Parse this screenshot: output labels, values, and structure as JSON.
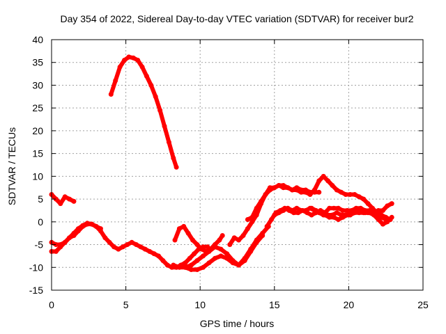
{
  "chart_data": {
    "type": "scatter",
    "title": "Day 354 of 2022, Sidereal Day-to-day VTEC variation (SDTVAR) for receiver bur2",
    "xlabel": "GPS time / hours",
    "ylabel": "SDTVAR / TECUs",
    "xlim": [
      0,
      25
    ],
    "ylim": [
      -15,
      40
    ],
    "xticks": [
      0,
      5,
      10,
      15,
      20,
      25
    ],
    "yticks": [
      -15,
      -10,
      -5,
      0,
      5,
      10,
      15,
      20,
      25,
      30,
      35,
      40
    ],
    "grid": true,
    "color": "#ff0000",
    "series": [
      {
        "name": "s1",
        "x": [
          0.0,
          0.3,
          0.6,
          0.9,
          1.2,
          1.5,
          1.8,
          2.1,
          2.4,
          2.7,
          3.0,
          3.3,
          3.6,
          3.9,
          4.2,
          4.5,
          4.8,
          5.1,
          5.4,
          5.7,
          6.0,
          6.3,
          6.6,
          6.9,
          7.2,
          7.5,
          7.8,
          8.1,
          8.4,
          8.7,
          9.0,
          9.3,
          9.6,
          9.9,
          10.2,
          10.5
        ],
        "y": [
          -4.5,
          -5,
          -5,
          -4.5,
          -3.5,
          -3,
          -2,
          -1,
          -0.5,
          -0.5,
          -1,
          -2,
          -3.5,
          -4.5,
          -5.5,
          -6,
          -5.5,
          -5,
          -4.5,
          -5,
          -5.5,
          -6,
          -6.5,
          -7,
          -7.5,
          -8.5,
          -9.5,
          -10,
          -10,
          -9.5,
          -9,
          -8,
          -7,
          -6,
          -5.5,
          -5.5
        ]
      },
      {
        "name": "s2",
        "x": [
          0.0,
          0.3,
          0.6,
          0.9,
          1.2,
          1.5,
          1.8,
          2.1,
          2.4,
          2.7,
          3.0,
          3.3
        ],
        "y": [
          -6.5,
          -6.5,
          -5.5,
          -4.5,
          -3.5,
          -2.5,
          -1.5,
          -0.8,
          -0.3,
          -0.5,
          -1,
          -1.5
        ]
      },
      {
        "name": "s3",
        "x": [
          0.0,
          0.3,
          0.6,
          0.9,
          1.2,
          1.5
        ],
        "y": [
          6,
          5,
          4,
          5.5,
          5,
          4.5
        ]
      },
      {
        "name": "s4",
        "x": [
          4.0,
          4.3,
          4.6,
          4.9,
          5.2,
          5.5,
          5.8,
          6.1,
          6.4,
          6.7,
          7.0,
          7.3,
          7.6,
          7.9,
          8.2,
          8.4
        ],
        "y": [
          28,
          31,
          34,
          35.5,
          36.2,
          36,
          35.5,
          34,
          32,
          30,
          27.5,
          24.5,
          21,
          17.5,
          14,
          12
        ]
      },
      {
        "name": "s5",
        "x": [
          8.3,
          8.6,
          8.9,
          9.2,
          9.5,
          9.8,
          10.1,
          10.4,
          10.7,
          11.0,
          11.3,
          11.5
        ],
        "y": [
          -4,
          -1.5,
          -1,
          -2.5,
          -4,
          -5,
          -6,
          -6.5,
          -6,
          -5,
          -4,
          -3
        ]
      },
      {
        "name": "s6",
        "x": [
          8.2,
          8.6,
          9.0,
          9.4,
          9.8,
          10.2,
          10.6,
          11.0,
          11.4,
          11.8,
          12.2,
          12.6,
          13.0,
          13.4,
          13.8,
          14.2
        ],
        "y": [
          -9.5,
          -10,
          -10,
          -9.5,
          -8.5,
          -7.5,
          -6.5,
          -5.5,
          -6,
          -7,
          -8.5,
          -9.5,
          -8.5,
          -6.5,
          -4.5,
          -3
        ]
      },
      {
        "name": "s7",
        "x": [
          9.0,
          9.4,
          9.8,
          10.2,
          10.6,
          11.0,
          11.4,
          11.8,
          12.2,
          12.6,
          13.0,
          13.4,
          13.8,
          14.2,
          14.6
        ],
        "y": [
          -10,
          -10.5,
          -10.5,
          -10,
          -9,
          -8,
          -7.5,
          -8,
          -9,
          -9.5,
          -8,
          -6,
          -4,
          -2.5,
          -1
        ]
      },
      {
        "name": "s8",
        "x": [
          12.0,
          12.3,
          12.6,
          12.9,
          13.2,
          13.5,
          13.8,
          14.1,
          14.4,
          14.7,
          15.0,
          15.3,
          15.6,
          15.9,
          16.2,
          16.5,
          16.8,
          17.1,
          17.4,
          17.7,
          18.0
        ],
        "y": [
          -5,
          -3.5,
          -4,
          -3,
          -1.5,
          0,
          1.5,
          4,
          6,
          7,
          7.5,
          8,
          8,
          7.5,
          7,
          7.5,
          7,
          7,
          6.5,
          6.5,
          6.5
        ]
      },
      {
        "name": "s9",
        "x": [
          13.2,
          13.5,
          13.8,
          14.1,
          14.4,
          14.7,
          15.0,
          15.3,
          15.6,
          15.9,
          16.2,
          16.5,
          16.8,
          17.1,
          17.4,
          17.7,
          18.0,
          18.3,
          18.6,
          18.9,
          19.2,
          19.5,
          19.8,
          20.1,
          20.4,
          20.7,
          21.0,
          21.3,
          21.6,
          21.9,
          22.2,
          22.5,
          22.8
        ],
        "y": [
          0.5,
          1,
          3,
          4.5,
          6,
          7.5,
          7.5,
          8,
          7.5,
          7.5,
          7,
          7,
          6.5,
          6.5,
          6,
          7,
          9,
          10,
          9,
          8,
          7,
          6.5,
          6,
          6,
          6,
          5.5,
          5,
          4,
          3,
          2,
          1,
          0.5,
          0.5
        ]
      },
      {
        "name": "s10",
        "x": [
          14.5,
          14.8,
          15.1,
          15.4,
          15.7,
          16.0,
          16.3,
          16.6,
          16.9,
          17.2,
          17.5,
          17.8,
          18.1,
          18.4,
          18.7,
          19.0,
          19.3,
          19.6,
          19.9,
          20.2,
          20.5,
          20.8,
          21.1,
          21.4,
          21.7,
          22.0,
          22.3,
          22.6,
          22.9
        ],
        "y": [
          -1,
          0.5,
          2,
          2.5,
          3,
          2.5,
          2,
          2,
          2.5,
          2,
          1.5,
          2,
          2.5,
          2,
          3,
          3,
          3,
          2.5,
          2.5,
          2.5,
          3,
          3,
          2.5,
          2.5,
          2,
          2.5,
          2.5,
          3.5,
          4
        ]
      },
      {
        "name": "s11",
        "x": [
          15.0,
          15.3,
          15.6,
          15.9,
          16.2,
          16.5,
          16.8,
          17.1,
          17.4,
          17.7,
          18.0,
          18.3,
          18.6,
          18.9,
          19.2,
          19.5,
          19.8,
          20.1,
          20.4,
          20.7,
          21.0,
          21.3,
          21.6,
          21.9,
          22.2,
          22.5,
          22.8
        ],
        "y": [
          1.5,
          2,
          2.5,
          3,
          2.5,
          3,
          2.5,
          2.5,
          3,
          2.5,
          2,
          1.5,
          1.5,
          1.5,
          2,
          1.5,
          1.5,
          1.5,
          2,
          2,
          2,
          2,
          2.5,
          2,
          1.5,
          1,
          0.5
        ]
      },
      {
        "name": "s12",
        "x": [
          17.5,
          17.8,
          18.1,
          18.4,
          18.7,
          19.0,
          19.3,
          19.6,
          19.9,
          20.2,
          20.5,
          20.8,
          21.1,
          21.4,
          21.7,
          22.0,
          22.3,
          22.6,
          22.9
        ],
        "y": [
          3,
          2.5,
          2,
          1.5,
          1,
          1,
          0.5,
          1,
          1.5,
          2,
          2.5,
          2.5,
          2,
          2,
          1.5,
          0.5,
          -0.5,
          0,
          1
        ]
      }
    ]
  }
}
